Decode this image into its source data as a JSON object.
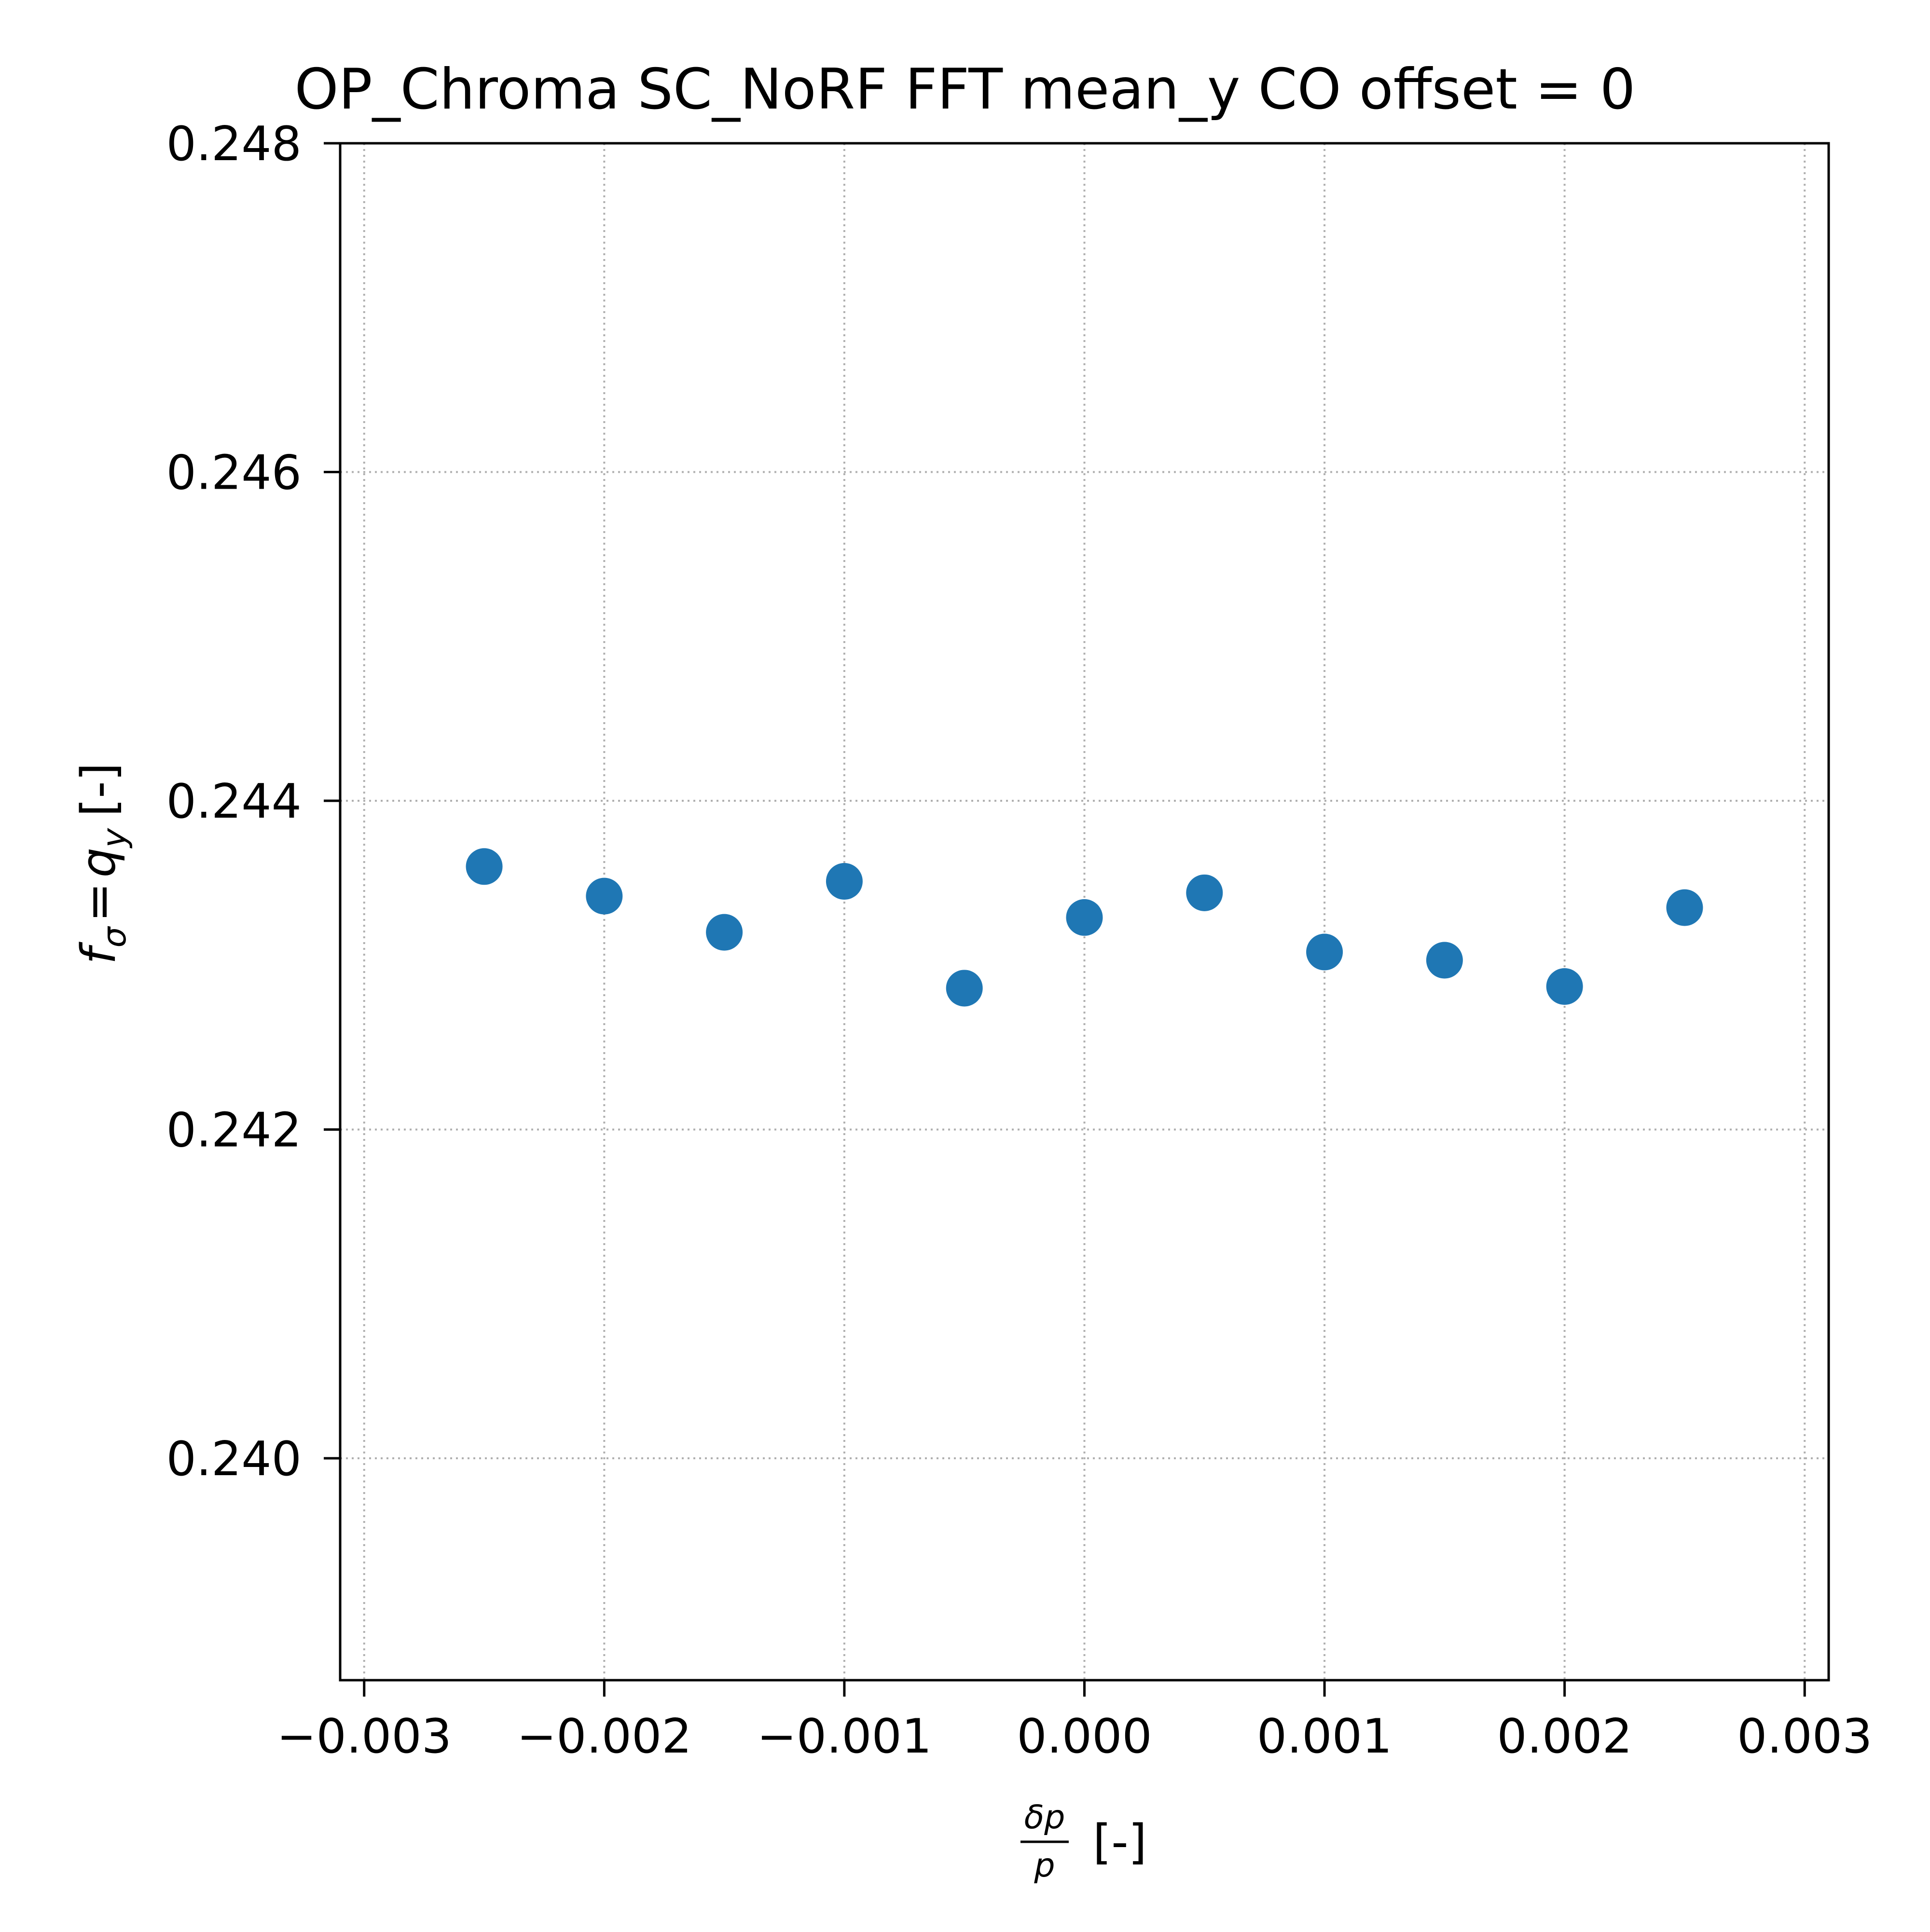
{
  "chart_data": {
    "type": "scatter",
    "title": "OP_Chroma SC_NoRF FFT mean_y CO offset = 0",
    "xlabel": {
      "numerator": "δp",
      "denominator": "p",
      "suffix": "[-]"
    },
    "ylabel": {
      "f": "f",
      "f_sub": "σ",
      "equals": "=",
      "q": "q",
      "q_sub": "y",
      "suffix": "[-]"
    },
    "xlim": [
      -0.0031,
      0.0031
    ],
    "ylim": [
      0.23865,
      0.248
    ],
    "x_ticks": [
      {
        "value": -0.003,
        "label": "−0.003"
      },
      {
        "value": -0.002,
        "label": "−0.002"
      },
      {
        "value": -0.001,
        "label": "−0.001"
      },
      {
        "value": 0.0,
        "label": "0.000"
      },
      {
        "value": 0.001,
        "label": "0.001"
      },
      {
        "value": 0.002,
        "label": "0.002"
      },
      {
        "value": 0.003,
        "label": "0.003"
      }
    ],
    "y_ticks": [
      {
        "value": 0.24,
        "label": "0.240"
      },
      {
        "value": 0.242,
        "label": "0.242"
      },
      {
        "value": 0.244,
        "label": "0.244"
      },
      {
        "value": 0.246,
        "label": "0.246"
      },
      {
        "value": 0.248,
        "label": "0.248"
      }
    ],
    "grid": true,
    "marker_color": "#1f77b4",
    "series": [
      {
        "x": [
          -0.0025,
          -0.002,
          -0.0015,
          -0.001,
          -0.0005,
          0.0,
          0.0005,
          0.001,
          0.0015,
          0.002,
          0.0025
        ],
        "y": [
          0.2436,
          0.24342,
          0.2432,
          0.24351,
          0.24286,
          0.24329,
          0.24344,
          0.24308,
          0.24303,
          0.24287,
          0.24335
        ]
      }
    ]
  }
}
